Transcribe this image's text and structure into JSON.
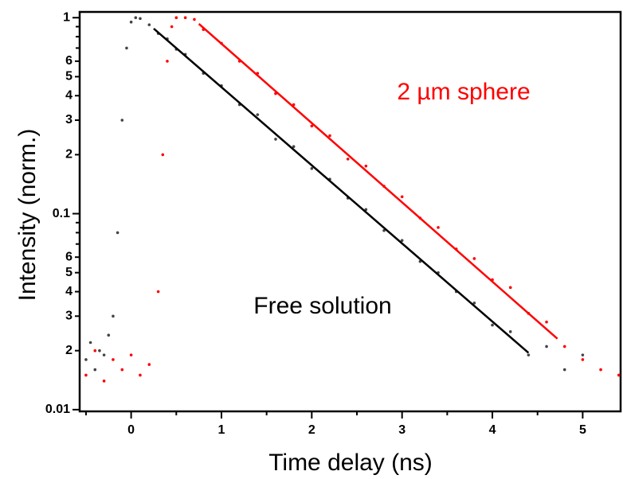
{
  "chart_data": {
    "type": "scatter",
    "xlabel": "Time delay (ns)",
    "ylabel": "Intensity (norm.)",
    "xlim": [
      -0.57,
      5.42
    ],
    "xticks": [
      0,
      1,
      2,
      3,
      4,
      5
    ],
    "xminor": [
      -0.5,
      0.5,
      1.5,
      2.5,
      3.5,
      4.5
    ],
    "ylim": [
      0.0098,
      1.07
    ],
    "yscale": "log",
    "yticks": [
      0.01,
      {
        "value": 0.02,
        "label": "2"
      },
      {
        "value": 0.03,
        "label": "3"
      },
      {
        "value": 0.04,
        "label": "4"
      },
      {
        "value": 0.05,
        "label": "5"
      },
      {
        "value": 0.06,
        "label": "6"
      },
      0.1,
      {
        "value": 0.2,
        "label": "2"
      },
      {
        "value": 0.3,
        "label": "3"
      },
      {
        "value": 0.4,
        "label": "4"
      },
      {
        "value": 0.5,
        "label": "5"
      },
      {
        "value": 0.6,
        "label": "6"
      },
      1
    ],
    "yminor": [
      0.07,
      0.08,
      0.09,
      0.7,
      0.8,
      0.9
    ],
    "annotations": [
      {
        "text": "2 µm sphere",
        "color": "#ff0000"
      },
      {
        "text": "Free solution",
        "color": "#000000"
      }
    ],
    "series": [
      {
        "style": "markers",
        "color": "#444444",
        "x": [
          -0.5,
          -0.45,
          -0.4,
          -0.35,
          -0.3,
          -0.25,
          -0.2,
          -0.15,
          -0.1,
          -0.05,
          0,
          0.05,
          0.1,
          0.2,
          0.3,
          0.4,
          0.5,
          0.6,
          0.8,
          1.0,
          1.2,
          1.4,
          1.6,
          1.8,
          2.0,
          2.2,
          2.4,
          2.6,
          2.8,
          3.0,
          3.2,
          3.4,
          3.6,
          3.8,
          4.0,
          4.2,
          4.4,
          4.6,
          4.8,
          5.0
        ],
        "values": [
          0.018,
          0.022,
          0.016,
          0.02,
          0.019,
          0.024,
          0.03,
          0.08,
          0.3,
          0.7,
          0.95,
          1.0,
          0.99,
          0.92,
          0.83,
          0.78,
          0.69,
          0.65,
          0.52,
          0.45,
          0.36,
          0.32,
          0.24,
          0.22,
          0.17,
          0.15,
          0.12,
          0.105,
          0.082,
          0.073,
          0.057,
          0.05,
          0.04,
          0.035,
          0.027,
          0.025,
          0.019,
          0.021,
          0.016,
          0.019
        ]
      },
      {
        "style": "markers",
        "color": "#ff0000",
        "x": [
          -0.5,
          -0.4,
          -0.3,
          -0.2,
          -0.1,
          0,
          0.1,
          0.2,
          0.3,
          0.35,
          0.4,
          0.45,
          0.5,
          0.6,
          0.7,
          0.8,
          1.0,
          1.2,
          1.4,
          1.6,
          1.8,
          2.0,
          2.2,
          2.4,
          2.6,
          2.8,
          3.0,
          3.2,
          3.4,
          3.6,
          3.8,
          4.0,
          4.2,
          4.4,
          4.6,
          4.8,
          5.0,
          5.2,
          5.4
        ],
        "values": [
          0.015,
          0.02,
          0.014,
          0.018,
          0.016,
          0.019,
          0.015,
          0.017,
          0.04,
          0.2,
          0.6,
          0.9,
          1.0,
          1.0,
          0.98,
          0.87,
          0.74,
          0.6,
          0.52,
          0.41,
          0.36,
          0.28,
          0.25,
          0.19,
          0.175,
          0.138,
          0.122,
          0.095,
          0.085,
          0.066,
          0.059,
          0.046,
          0.042,
          0.031,
          0.028,
          0.021,
          0.018,
          0.016,
          0.015
        ]
      },
      {
        "style": "line",
        "color": "#000000",
        "x": [
          0.25,
          4.4
        ],
        "values": [
          0.88,
          0.0195
        ]
      },
      {
        "style": "line",
        "color": "#ff0000",
        "x": [
          0.75,
          4.72
        ],
        "values": [
          0.93,
          0.023
        ]
      }
    ]
  }
}
